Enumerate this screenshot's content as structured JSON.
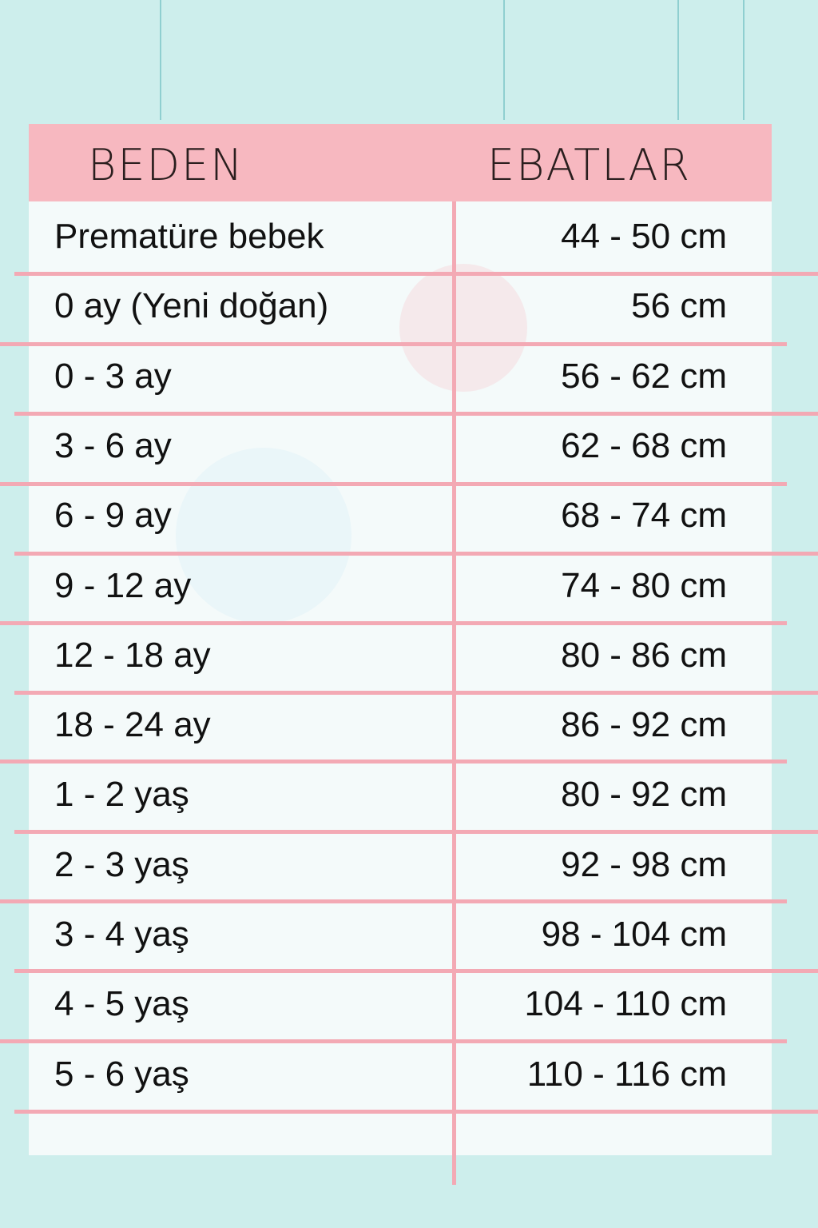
{
  "table": {
    "headers": [
      "BEDEN",
      "EBATLAR"
    ],
    "rows": [
      [
        "Prematüre bebek",
        "44 - 50 cm"
      ],
      [
        "0 ay (Yeni doğan)",
        "56 cm"
      ],
      [
        "0 - 3 ay",
        "56 - 62 cm"
      ],
      [
        "3 - 6 ay",
        "62 - 68 cm"
      ],
      [
        "6 - 9 ay",
        "68 - 74 cm"
      ],
      [
        "9 - 12 ay",
        "74 - 80 cm"
      ],
      [
        "12 - 18 ay",
        "80 - 86 cm"
      ],
      [
        "18 - 24 ay",
        "86 - 92 cm"
      ],
      [
        "1 - 2 yaş",
        "80 - 92 cm"
      ],
      [
        "2 - 3 yaş",
        "92 - 98 cm"
      ],
      [
        "3 - 4 yaş",
        "98 - 104 cm"
      ],
      [
        "4 - 5 yaş",
        "104 - 110 cm"
      ],
      [
        "5 - 6 yaş",
        "110 - 116 cm"
      ]
    ]
  },
  "colors": {
    "background": "#cdeeec",
    "header": "#f7b8c0",
    "lines": "#f3a9b4"
  }
}
